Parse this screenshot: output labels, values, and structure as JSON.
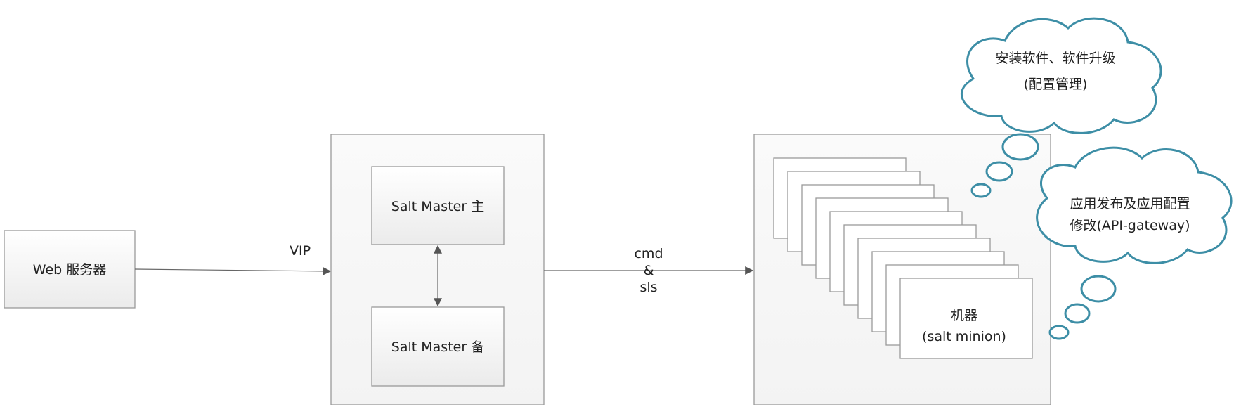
{
  "nodes": {
    "web_server": {
      "label": "Web 服务器"
    },
    "master_primary": {
      "label": "Salt Master 主"
    },
    "master_backup": {
      "label": "Salt Master 备"
    },
    "minion": {
      "line1": "机器",
      "line2": "(salt minion)"
    }
  },
  "edges": {
    "web_to_master": {
      "label": "VIP"
    },
    "master_to_minions": {
      "line1": "cmd",
      "line2": "&",
      "line3": "sls"
    }
  },
  "clouds": {
    "config": {
      "line1": "安装软件、软件升级",
      "line2": "(配置管理)"
    },
    "deploy": {
      "line1": "应用发布及应用配置",
      "line2": "修改(API-gateway)"
    }
  },
  "colors": {
    "cloud_stroke": "#3d8ea6",
    "box_fill_top": "#ffffff",
    "box_fill_bottom": "#ececec",
    "arrow": "#555555"
  }
}
